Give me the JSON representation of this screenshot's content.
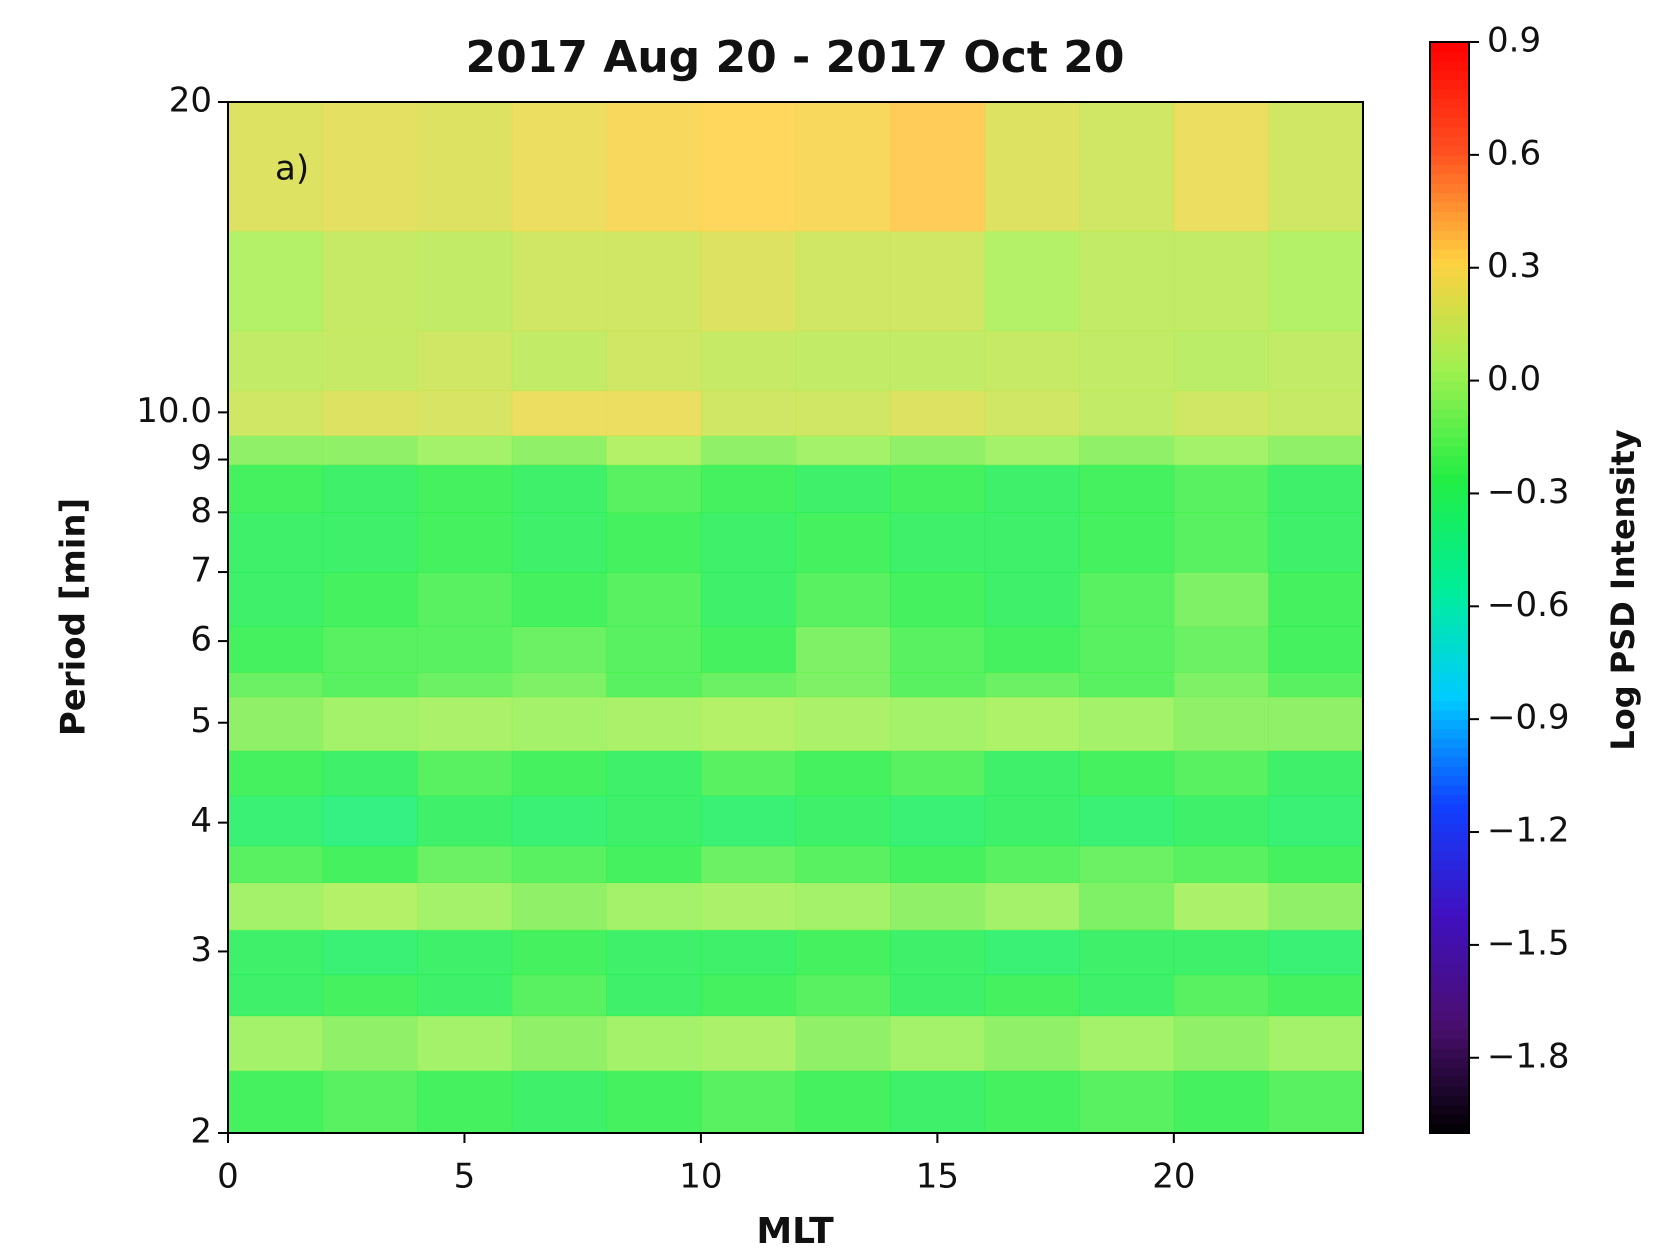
{
  "chart_data": {
    "type": "heatmap",
    "title": "2017 Aug 20 - 2017 Oct 20",
    "xlabel": "MLT",
    "ylabel": "Period [min]",
    "colorbar_label": "Log PSD Intensity",
    "annotation": "a)",
    "xlim": [
      0,
      24
    ],
    "xticks": [
      0,
      5,
      10,
      15,
      20
    ],
    "ylim": [
      2,
      20
    ],
    "ylog": true,
    "yticks": [
      2,
      3,
      4,
      5,
      6,
      7,
      8,
      9,
      {
        "value": 10,
        "label": "10.0"
      },
      20
    ],
    "zlim": [
      -2.0,
      0.9
    ],
    "zticks": [
      0.9,
      0.6,
      0.3,
      {
        "value": 0,
        "label": "0.0"
      },
      {
        "value": -0.3,
        "label": "−0.3"
      },
      {
        "value": -0.6,
        "label": "−0.6"
      },
      {
        "value": -0.9,
        "label": "−0.9"
      },
      {
        "value": -1.2,
        "label": "−1.2"
      },
      {
        "value": -1.5,
        "label": "−1.5"
      },
      {
        "value": -1.8,
        "label": "−1.8"
      }
    ],
    "colormap": [
      "#000000",
      "#4a0f70",
      "#4010c0",
      "#1040ff",
      "#00ccff",
      "#00ee99",
      "#22ee44",
      "#a0f050",
      "#ffd040",
      "#ff5020",
      "#ff0000"
    ],
    "x_edges": [
      0,
      2,
      4,
      6,
      8,
      10,
      12,
      14,
      16,
      18,
      20,
      22,
      24
    ],
    "y_edges": [
      2,
      2.3,
      2.6,
      2.85,
      3.15,
      3.5,
      3.8,
      4.25,
      4.7,
      5.3,
      5.6,
      6.2,
      7,
      8,
      8.9,
      9.5,
      10.5,
      12,
      15,
      20
    ],
    "z": [
      [
        -0.25,
        -0.2,
        -0.25,
        -0.3,
        -0.25,
        -0.2,
        -0.25,
        -0.3,
        -0.25,
        -0.2,
        -0.25,
        -0.2
      ],
      [
        0.0,
        -0.05,
        0.0,
        -0.05,
        0.0,
        0.02,
        -0.05,
        0.0,
        -0.05,
        0.0,
        -0.05,
        0.0
      ],
      [
        -0.3,
        -0.25,
        -0.3,
        -0.2,
        -0.3,
        -0.25,
        -0.2,
        -0.3,
        -0.25,
        -0.3,
        -0.2,
        -0.25
      ],
      [
        -0.3,
        -0.35,
        -0.3,
        -0.25,
        -0.3,
        -0.3,
        -0.25,
        -0.3,
        -0.35,
        -0.3,
        -0.3,
        -0.35
      ],
      [
        0.0,
        0.05,
        0.0,
        -0.05,
        0.0,
        0.02,
        0.0,
        -0.05,
        0.0,
        -0.1,
        0.02,
        -0.05
      ],
      [
        -0.2,
        -0.25,
        -0.15,
        -0.2,
        -0.25,
        -0.15,
        -0.2,
        -0.25,
        -0.2,
        -0.15,
        -0.2,
        -0.25
      ],
      [
        -0.35,
        -0.4,
        -0.3,
        -0.35,
        -0.3,
        -0.35,
        -0.3,
        -0.35,
        -0.3,
        -0.35,
        -0.3,
        -0.35
      ],
      [
        -0.25,
        -0.3,
        -0.2,
        -0.25,
        -0.3,
        -0.2,
        -0.25,
        -0.2,
        -0.3,
        -0.25,
        -0.2,
        -0.3
      ],
      [
        -0.05,
        0.0,
        0.02,
        0.0,
        0.02,
        0.05,
        0.02,
        0.0,
        0.03,
        0.0,
        -0.05,
        -0.05
      ],
      [
        -0.15,
        -0.2,
        -0.15,
        -0.1,
        -0.2,
        -0.15,
        -0.1,
        -0.2,
        -0.15,
        -0.2,
        -0.1,
        -0.2
      ],
      [
        -0.25,
        -0.2,
        -0.2,
        -0.15,
        -0.2,
        -0.25,
        -0.1,
        -0.2,
        -0.25,
        -0.2,
        -0.15,
        -0.25
      ],
      [
        -0.3,
        -0.25,
        -0.2,
        -0.25,
        -0.2,
        -0.3,
        -0.2,
        -0.25,
        -0.3,
        -0.2,
        -0.1,
        -0.25
      ],
      [
        -0.3,
        -0.3,
        -0.25,
        -0.3,
        -0.25,
        -0.3,
        -0.25,
        -0.3,
        -0.3,
        -0.25,
        -0.2,
        -0.3
      ],
      [
        -0.25,
        -0.3,
        -0.25,
        -0.3,
        -0.2,
        -0.25,
        -0.3,
        -0.25,
        -0.3,
        -0.25,
        -0.2,
        -0.3
      ],
      [
        -0.05,
        -0.05,
        0.0,
        -0.05,
        0.05,
        -0.05,
        0.0,
        -0.05,
        0.0,
        -0.05,
        0.0,
        -0.05
      ],
      [
        0.15,
        0.2,
        0.18,
        0.25,
        0.25,
        0.15,
        0.15,
        0.2,
        0.15,
        0.1,
        0.15,
        0.12
      ],
      [
        0.1,
        0.12,
        0.15,
        0.1,
        0.15,
        0.12,
        0.1,
        0.1,
        0.12,
        0.1,
        0.08,
        0.1
      ],
      [
        0.05,
        0.12,
        0.1,
        0.15,
        0.15,
        0.2,
        0.15,
        0.15,
        0.05,
        0.1,
        0.1,
        0.05
      ],
      [
        0.2,
        0.22,
        0.2,
        0.25,
        0.3,
        0.32,
        0.3,
        0.35,
        0.2,
        0.15,
        0.25,
        0.15
      ]
    ]
  }
}
